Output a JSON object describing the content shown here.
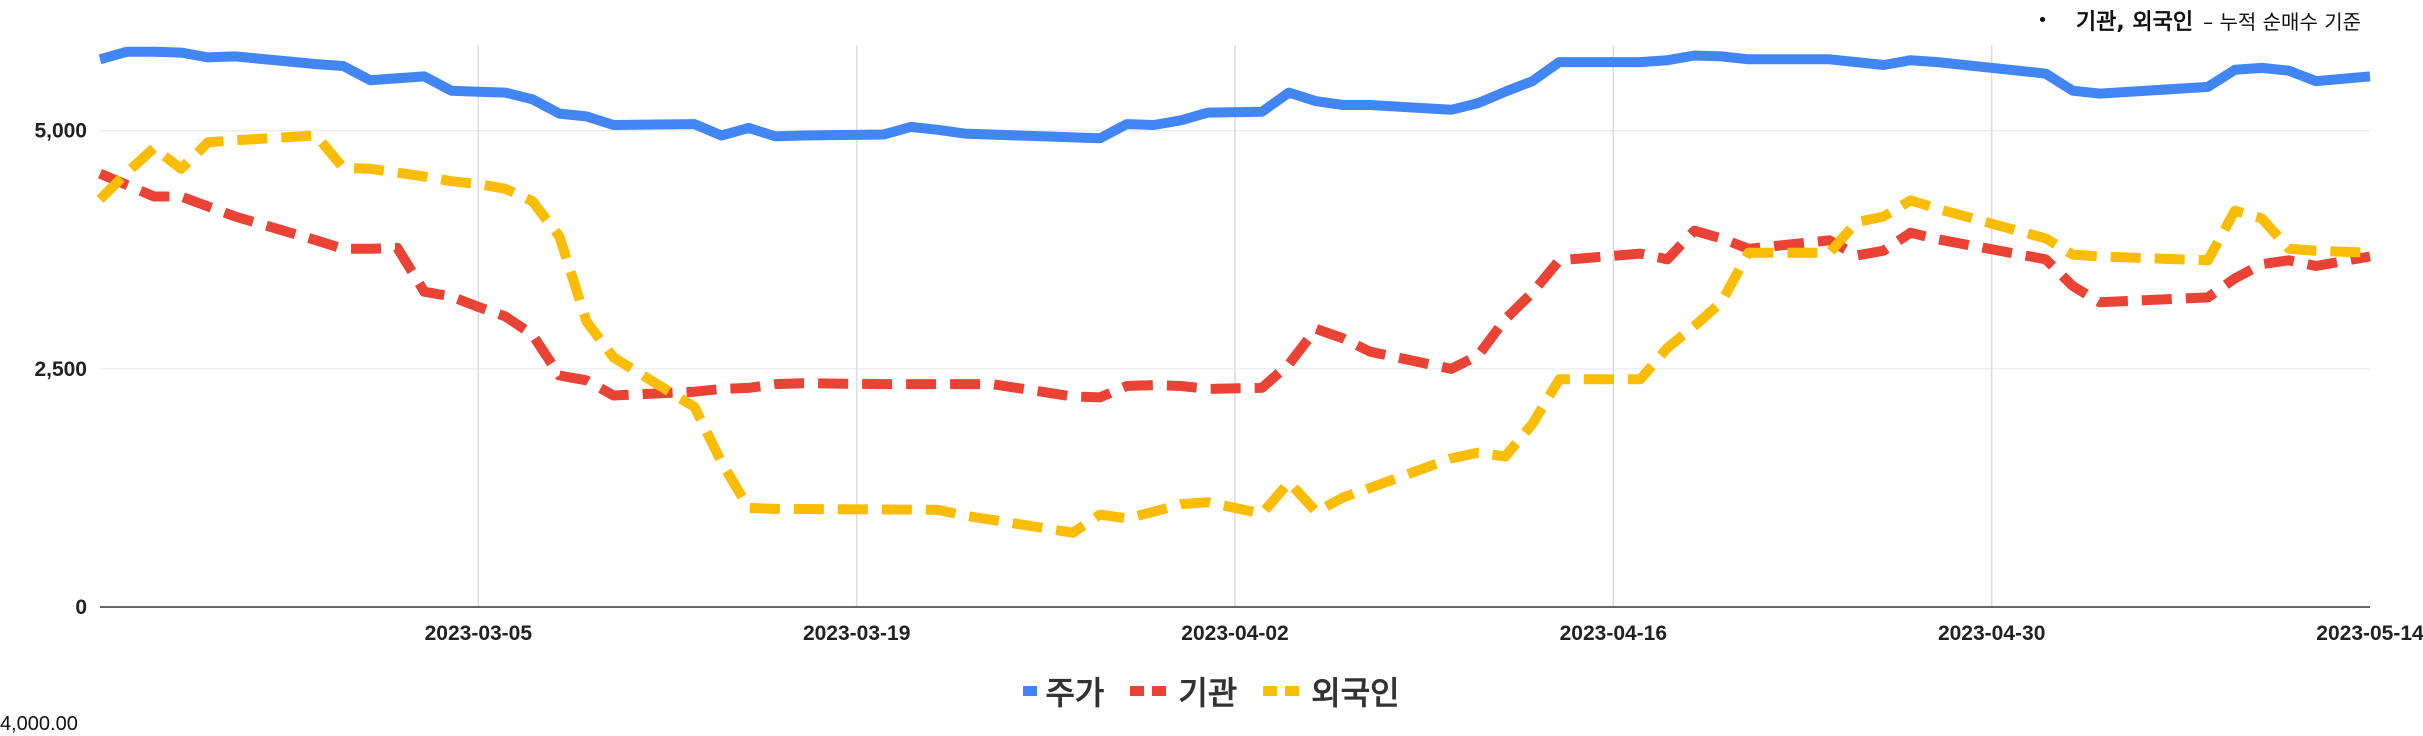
{
  "note": {
    "bullet": "•",
    "main": "기관, 외국인",
    "sub": "– 누적 순매수 기준"
  },
  "corner_label": "4,000.00",
  "chart_data": {
    "type": "line",
    "xlabel": "",
    "ylabel": "",
    "ylim": [
      0,
      5900
    ],
    "yticks": [
      0,
      2500,
      5000
    ],
    "ytick_labels": [
      "0",
      "2,500",
      "5,000"
    ],
    "xticks": [
      "2023-03-05",
      "2023-03-19",
      "2023-04-02",
      "2023-04-16",
      "2023-04-30",
      "2023-05-14"
    ],
    "x_start": "2023-02-19",
    "x_end": "2023-05-14",
    "grid": true,
    "legend_position": "bottom",
    "series": [
      {
        "name": "주가",
        "color": "#4285f4",
        "dash": "solid",
        "points": [
          [
            "2023-02-19",
            5750
          ],
          [
            "2023-02-20",
            5830
          ],
          [
            "2023-02-21",
            5830
          ],
          [
            "2023-02-22",
            5820
          ],
          [
            "2023-02-23",
            5770
          ],
          [
            "2023-02-24",
            5780
          ],
          [
            "2023-02-27",
            5700
          ],
          [
            "2023-02-28",
            5680
          ],
          [
            "2023-03-01",
            5530
          ],
          [
            "2023-03-03",
            5570
          ],
          [
            "2023-03-04",
            5420
          ],
          [
            "2023-03-05",
            5410
          ],
          [
            "2023-03-06",
            5400
          ],
          [
            "2023-03-07",
            5330
          ],
          [
            "2023-03-08",
            5180
          ],
          [
            "2023-03-09",
            5150
          ],
          [
            "2023-03-10",
            5060
          ],
          [
            "2023-03-13",
            5070
          ],
          [
            "2023-03-14",
            4950
          ],
          [
            "2023-03-15",
            5030
          ],
          [
            "2023-03-16",
            4940
          ],
          [
            "2023-03-17",
            4950
          ],
          [
            "2023-03-20",
            4960
          ],
          [
            "2023-03-21",
            5040
          ],
          [
            "2023-03-22",
            5010
          ],
          [
            "2023-03-23",
            4970
          ],
          [
            "2023-03-27",
            4930
          ],
          [
            "2023-03-28",
            4920
          ],
          [
            "2023-03-29",
            5070
          ],
          [
            "2023-03-30",
            5060
          ],
          [
            "2023-03-31",
            5110
          ],
          [
            "2023-04-01",
            5190
          ],
          [
            "2023-04-03",
            5200
          ],
          [
            "2023-04-04",
            5400
          ],
          [
            "2023-04-05",
            5310
          ],
          [
            "2023-04-06",
            5270
          ],
          [
            "2023-04-07",
            5270
          ],
          [
            "2023-04-10",
            5220
          ],
          [
            "2023-04-11",
            5290
          ],
          [
            "2023-04-12",
            5410
          ],
          [
            "2023-04-13",
            5520
          ],
          [
            "2023-04-14",
            5720
          ],
          [
            "2023-04-17",
            5720
          ],
          [
            "2023-04-18",
            5740
          ],
          [
            "2023-04-19",
            5790
          ],
          [
            "2023-04-20",
            5780
          ],
          [
            "2023-04-21",
            5750
          ],
          [
            "2023-04-24",
            5750
          ],
          [
            "2023-04-25",
            5720
          ],
          [
            "2023-04-26",
            5690
          ],
          [
            "2023-04-27",
            5740
          ],
          [
            "2023-04-28",
            5720
          ],
          [
            "2023-05-02",
            5600
          ],
          [
            "2023-05-03",
            5420
          ],
          [
            "2023-05-04",
            5390
          ],
          [
            "2023-05-08",
            5460
          ],
          [
            "2023-05-09",
            5640
          ],
          [
            "2023-05-10",
            5660
          ],
          [
            "2023-05-11",
            5630
          ],
          [
            "2023-05-12",
            5520
          ],
          [
            "2023-05-14",
            5570
          ]
        ]
      },
      {
        "name": "기관",
        "color": "#ea4335",
        "dash": "dashed",
        "points": [
          [
            "2023-02-19",
            4550
          ],
          [
            "2023-02-21",
            4310
          ],
          [
            "2023-02-22",
            4310
          ],
          [
            "2023-02-24",
            4100
          ],
          [
            "2023-02-27",
            3850
          ],
          [
            "2023-02-28",
            3760
          ],
          [
            "2023-03-01",
            3760
          ],
          [
            "2023-03-02",
            3770
          ],
          [
            "2023-03-03",
            3310
          ],
          [
            "2023-03-04",
            3260
          ],
          [
            "2023-03-05",
            3150
          ],
          [
            "2023-03-06",
            3050
          ],
          [
            "2023-03-07",
            2860
          ],
          [
            "2023-03-08",
            2430
          ],
          [
            "2023-03-09",
            2380
          ],
          [
            "2023-03-10",
            2220
          ],
          [
            "2023-03-13",
            2260
          ],
          [
            "2023-03-14",
            2290
          ],
          [
            "2023-03-15",
            2300
          ],
          [
            "2023-03-16",
            2340
          ],
          [
            "2023-03-17",
            2350
          ],
          [
            "2023-03-20",
            2340
          ],
          [
            "2023-03-24",
            2340
          ],
          [
            "2023-03-27",
            2210
          ],
          [
            "2023-03-28",
            2200
          ],
          [
            "2023-03-29",
            2320
          ],
          [
            "2023-03-30",
            2330
          ],
          [
            "2023-03-31",
            2320
          ],
          [
            "2023-04-01",
            2290
          ],
          [
            "2023-04-03",
            2300
          ],
          [
            "2023-04-04",
            2550
          ],
          [
            "2023-04-05",
            2920
          ],
          [
            "2023-04-06",
            2820
          ],
          [
            "2023-04-07",
            2680
          ],
          [
            "2023-04-10",
            2500
          ],
          [
            "2023-04-11",
            2640
          ],
          [
            "2023-04-12",
            3020
          ],
          [
            "2023-04-13",
            3300
          ],
          [
            "2023-04-14",
            3640
          ],
          [
            "2023-04-17",
            3710
          ],
          [
            "2023-04-18",
            3650
          ],
          [
            "2023-04-19",
            3950
          ],
          [
            "2023-04-20",
            3870
          ],
          [
            "2023-04-21",
            3760
          ],
          [
            "2023-04-24",
            3850
          ],
          [
            "2023-04-25",
            3690
          ],
          [
            "2023-04-26",
            3740
          ],
          [
            "2023-04-27",
            3930
          ],
          [
            "2023-04-28",
            3860
          ],
          [
            "2023-05-02",
            3650
          ],
          [
            "2023-05-03",
            3370
          ],
          [
            "2023-05-04",
            3200
          ],
          [
            "2023-05-08",
            3250
          ],
          [
            "2023-05-09",
            3450
          ],
          [
            "2023-05-10",
            3600
          ],
          [
            "2023-05-11",
            3640
          ],
          [
            "2023-05-12",
            3580
          ],
          [
            "2023-05-14",
            3680
          ]
        ]
      },
      {
        "name": "외국인",
        "color": "#fbbc04",
        "dash": "dashed",
        "points": [
          [
            "2023-02-19",
            4280
          ],
          [
            "2023-02-20",
            4560
          ],
          [
            "2023-02-21",
            4820
          ],
          [
            "2023-02-22",
            4600
          ],
          [
            "2023-02-23",
            4880
          ],
          [
            "2023-02-24",
            4900
          ],
          [
            "2023-02-27",
            4950
          ],
          [
            "2023-02-28",
            4610
          ],
          [
            "2023-03-01",
            4600
          ],
          [
            "2023-03-03",
            4520
          ],
          [
            "2023-03-04",
            4470
          ],
          [
            "2023-03-05",
            4440
          ],
          [
            "2023-03-06",
            4390
          ],
          [
            "2023-03-07",
            4260
          ],
          [
            "2023-03-08",
            3890
          ],
          [
            "2023-03-09",
            3000
          ],
          [
            "2023-03-10",
            2620
          ],
          [
            "2023-03-13",
            2100
          ],
          [
            "2023-03-14",
            1520
          ],
          [
            "2023-03-15",
            1040
          ],
          [
            "2023-03-16",
            1030
          ],
          [
            "2023-03-22",
            1020
          ],
          [
            "2023-03-23",
            960
          ],
          [
            "2023-03-27",
            780
          ],
          [
            "2023-03-28",
            970
          ],
          [
            "2023-03-29",
            930
          ],
          [
            "2023-03-30",
            1000
          ],
          [
            "2023-03-31",
            1080
          ],
          [
            "2023-04-01",
            1100
          ],
          [
            "2023-04-03",
            980
          ],
          [
            "2023-04-04",
            1310
          ],
          [
            "2023-04-05",
            1000
          ],
          [
            "2023-04-06",
            1150
          ],
          [
            "2023-04-07",
            1250
          ],
          [
            "2023-04-10",
            1560
          ],
          [
            "2023-04-11",
            1620
          ],
          [
            "2023-04-12",
            1580
          ],
          [
            "2023-04-13",
            1920
          ],
          [
            "2023-04-14",
            2390
          ],
          [
            "2023-04-17",
            2390
          ],
          [
            "2023-04-18",
            2720
          ],
          [
            "2023-04-19",
            2950
          ],
          [
            "2023-04-20",
            3200
          ],
          [
            "2023-04-21",
            3720
          ],
          [
            "2023-04-24",
            3720
          ],
          [
            "2023-04-25",
            4040
          ],
          [
            "2023-04-26",
            4100
          ],
          [
            "2023-04-27",
            4270
          ],
          [
            "2023-04-28",
            4180
          ],
          [
            "2023-05-02",
            3870
          ],
          [
            "2023-05-03",
            3700
          ],
          [
            "2023-05-04",
            3680
          ],
          [
            "2023-05-08",
            3640
          ],
          [
            "2023-05-09",
            4160
          ],
          [
            "2023-05-10",
            4080
          ],
          [
            "2023-05-11",
            3760
          ],
          [
            "2023-05-12",
            3740
          ],
          [
            "2023-05-14",
            3720
          ]
        ]
      }
    ]
  }
}
